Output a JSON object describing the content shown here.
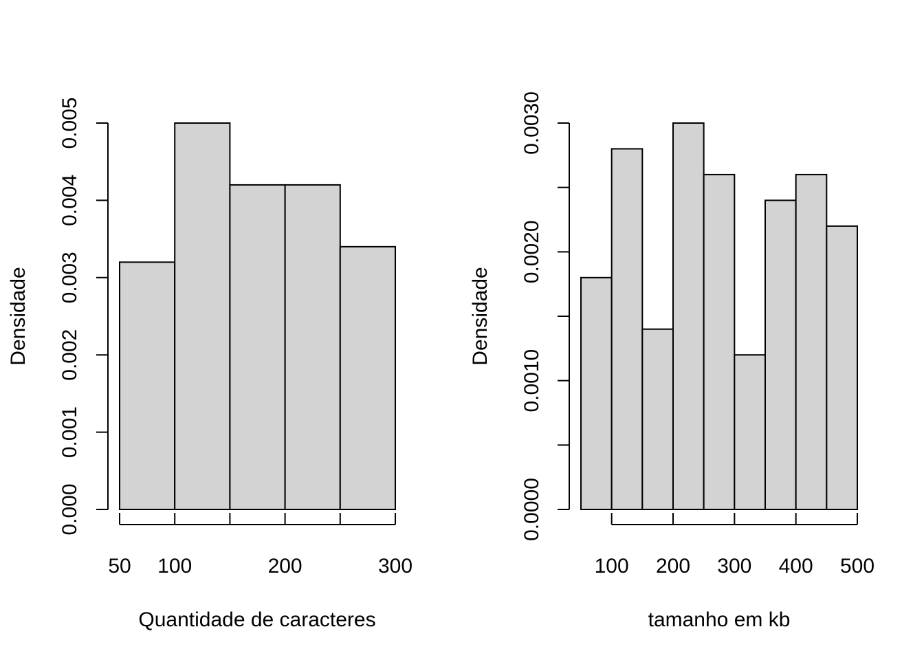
{
  "colors": {
    "bar_fill": "#d3d3d3",
    "bar_stroke": "#000000",
    "background": "#ffffff"
  },
  "chart_data": [
    {
      "type": "bar",
      "subtype": "histogram",
      "title": "",
      "xlabel": "Quantidade de caracteres",
      "ylabel": "Densidade",
      "bins": [
        [
          50,
          100
        ],
        [
          100,
          150
        ],
        [
          150,
          200
        ],
        [
          200,
          250
        ],
        [
          250,
          300
        ]
      ],
      "values": [
        0.0032,
        0.005,
        0.0042,
        0.0042,
        0.0034
      ],
      "xlim": [
        50,
        300
      ],
      "ylim": [
        0,
        0.005
      ],
      "x_ticks": [
        50,
        100,
        150,
        200,
        250,
        300
      ],
      "x_tick_labels": [
        "50",
        "100",
        "",
        "200",
        "",
        "300"
      ],
      "y_ticks": [
        0,
        0.001,
        0.002,
        0.003,
        0.004,
        0.005
      ],
      "y_tick_labels": [
        "0.000",
        "0.001",
        "0.002",
        "0.003",
        "0.004",
        "0.005"
      ],
      "grid": false,
      "legend": "none"
    },
    {
      "type": "bar",
      "subtype": "histogram",
      "title": "",
      "xlabel": "tamanho em kb",
      "ylabel": "Densidade",
      "bins": [
        [
          50,
          100
        ],
        [
          100,
          150
        ],
        [
          150,
          200
        ],
        [
          200,
          250
        ],
        [
          250,
          300
        ],
        [
          300,
          350
        ],
        [
          350,
          400
        ],
        [
          400,
          450
        ],
        [
          450,
          500
        ]
      ],
      "values": [
        0.0018,
        0.0028,
        0.0014,
        0.003,
        0.0026,
        0.0012,
        0.0024,
        0.0026,
        0.0022
      ],
      "xlim": [
        50,
        500
      ],
      "ylim": [
        0,
        0.003
      ],
      "x_ticks": [
        100,
        200,
        300,
        400,
        500
      ],
      "x_tick_labels": [
        "100",
        "200",
        "300",
        "400",
        "500"
      ],
      "y_ticks": [
        0,
        0.0005,
        0.001,
        0.0015,
        0.002,
        0.0025,
        0.003
      ],
      "y_tick_labels": [
        "0.0000",
        "",
        "0.0010",
        "",
        "0.0020",
        "",
        "0.0030"
      ],
      "grid": false,
      "legend": "none"
    }
  ]
}
